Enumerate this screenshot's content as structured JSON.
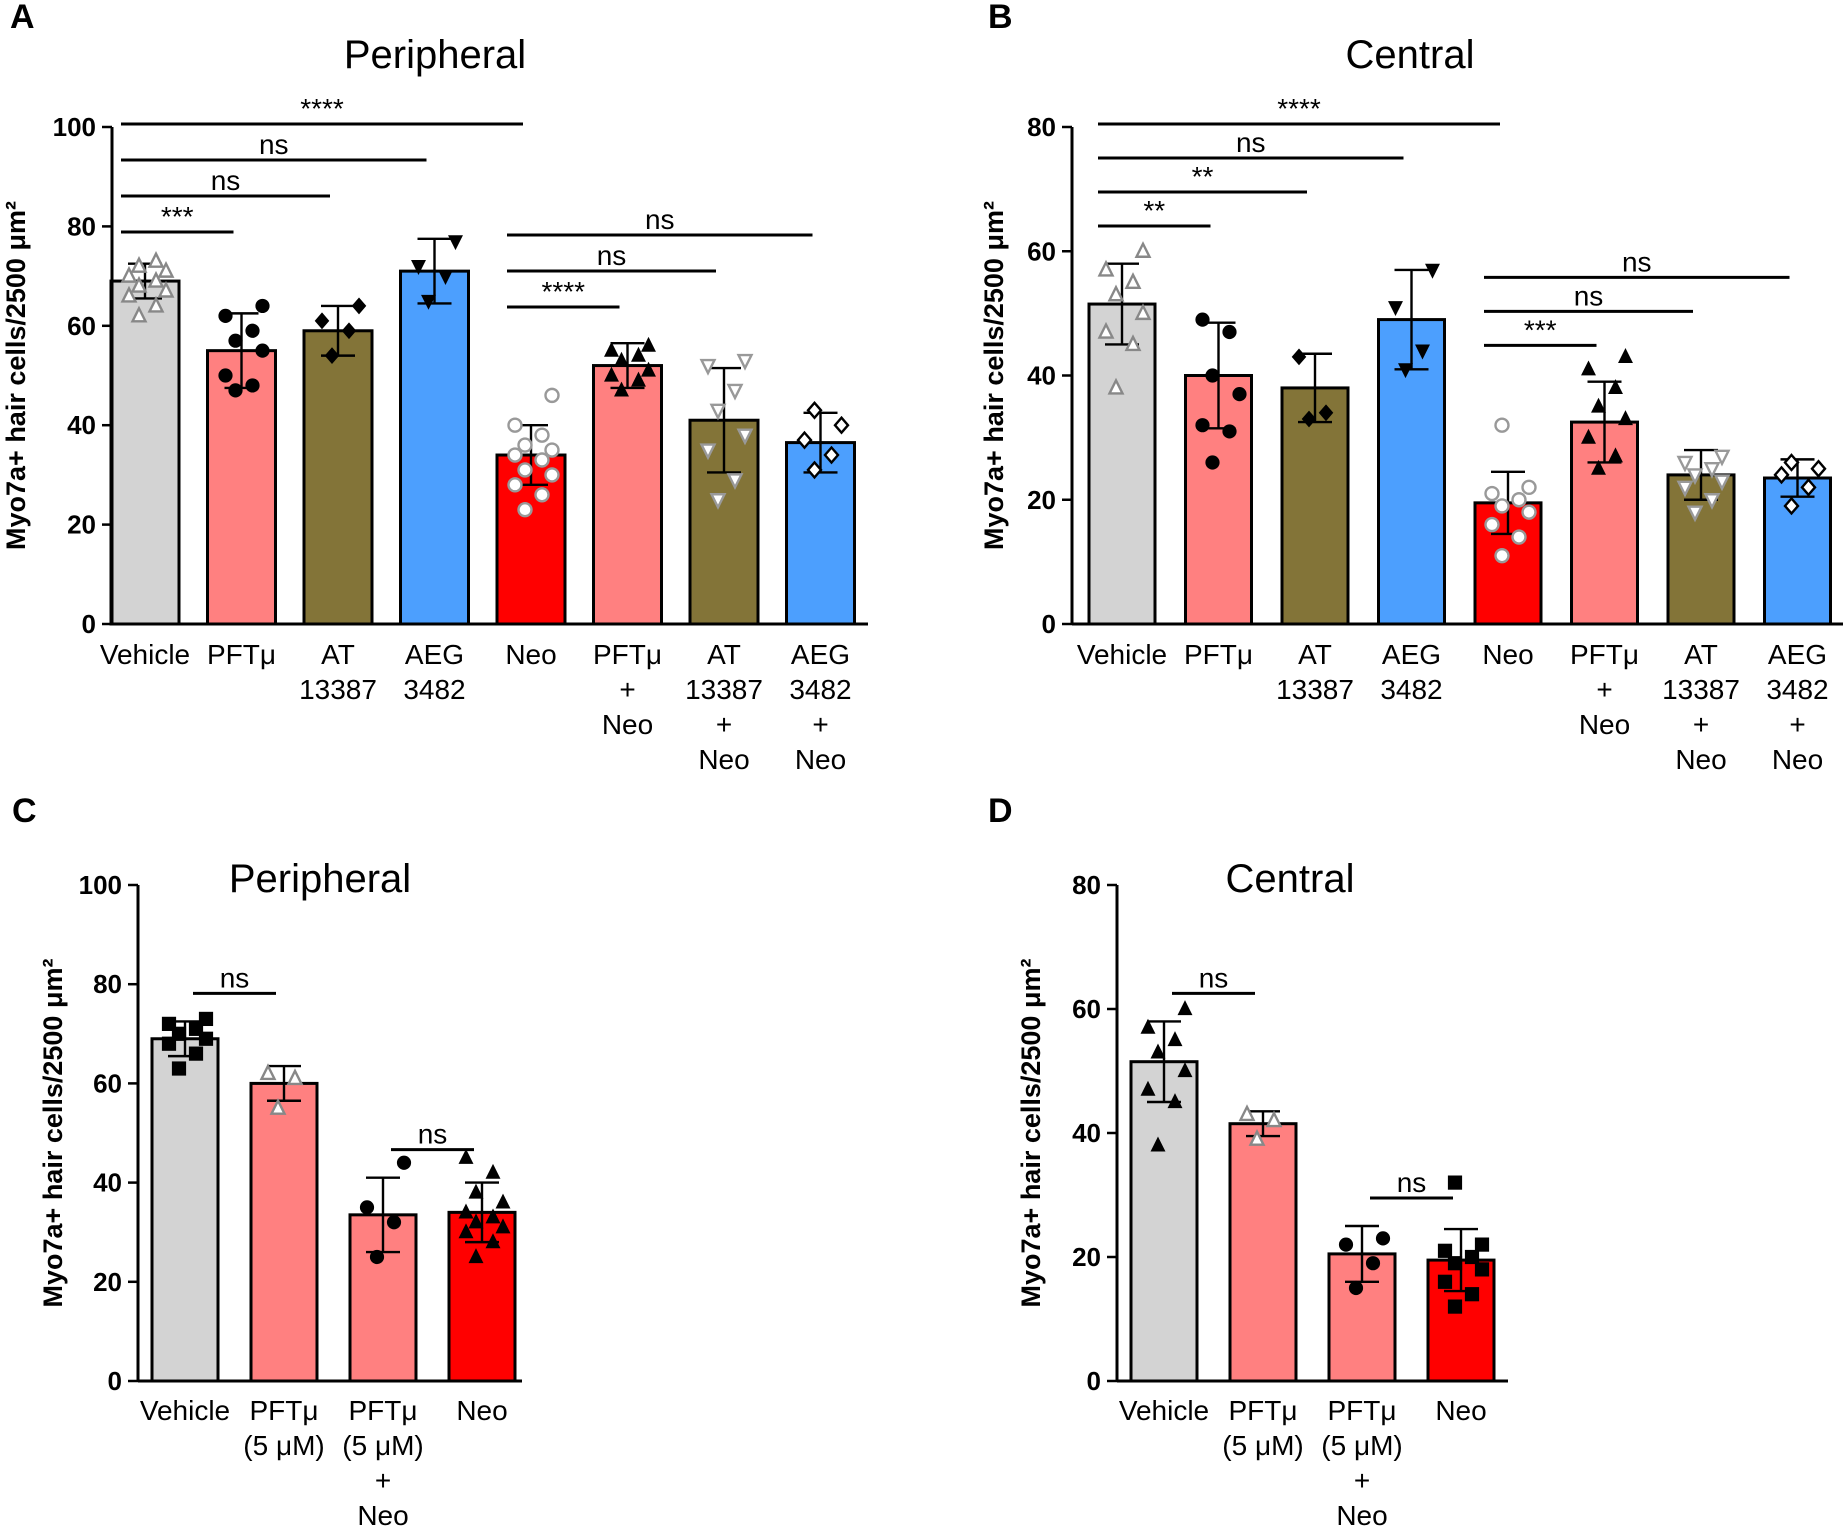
{
  "figure": {
    "panels": [
      {
        "label": "A",
        "title": "Peripheral"
      },
      {
        "label": "B",
        "title": "Central"
      },
      {
        "label": "C",
        "title": "Peripheral"
      },
      {
        "label": "D",
        "title": "Central"
      }
    ]
  },
  "chart_data": [
    {
      "type": "bar",
      "panel": "A",
      "title": "Peripheral",
      "ylabel": "Myo7a+ hair cells/2500 μm²",
      "ylim": [
        0,
        100
      ],
      "yticks": [
        0,
        20,
        40,
        60,
        80,
        100
      ],
      "categories": [
        [
          "Vehicle"
        ],
        [
          "PFTμ"
        ],
        [
          "AT",
          "13387"
        ],
        [
          "AEG",
          "3482"
        ],
        [
          "Neo"
        ],
        [
          "PFTμ",
          "+",
          "Neo"
        ],
        [
          "AT",
          "13387",
          "+",
          "Neo"
        ],
        [
          "AEG",
          "3482",
          "+",
          "Neo"
        ]
      ],
      "values": [
        69,
        55,
        59,
        71,
        34,
        52,
        41,
        36.5
      ],
      "errors": [
        3.5,
        7.5,
        5,
        6.5,
        6,
        4.5,
        10.5,
        6
      ],
      "colors": [
        "#d3d3d3",
        "#ff8080",
        "#837438",
        "#4c9ffe",
        "#ff0000",
        "#ff8080",
        "#837438",
        "#4c9ffe"
      ],
      "points": [
        [
          62,
          64,
          66,
          67,
          68,
          69,
          70,
          71,
          72,
          73
        ],
        [
          47,
          48,
          50,
          55,
          57,
          59,
          62,
          64
        ],
        [
          54,
          59,
          61,
          64
        ],
        [
          65,
          70,
          72,
          77
        ],
        [
          23,
          26,
          28,
          30,
          31,
          33,
          34,
          35,
          36,
          38,
          40,
          46
        ],
        [
          47,
          49,
          50,
          51,
          53,
          54,
          55,
          56
        ],
        [
          25,
          29,
          35,
          38,
          43,
          47,
          52,
          53
        ],
        [
          31,
          34,
          37,
          40,
          43
        ]
      ],
      "markers": [
        "tri-up-open",
        "circle",
        "diamond",
        "tri-down",
        "circle-open",
        "tri-up",
        "tri-down-open",
        "diamond-open"
      ],
      "marker_colors": [
        "#888888",
        "#000000",
        "#000000",
        "#000000",
        "#999999",
        "#000000",
        "#999999",
        "#000000"
      ],
      "comparisons": [
        {
          "from": 0,
          "to": 1,
          "label": "***"
        },
        {
          "from": 0,
          "to": 2,
          "label": "ns"
        },
        {
          "from": 0,
          "to": 3,
          "label": "ns"
        },
        {
          "from": 0,
          "to": 4,
          "label": "****"
        },
        {
          "from": 4,
          "to": 5,
          "label": "****"
        },
        {
          "from": 4,
          "to": 6,
          "label": "ns"
        },
        {
          "from": 4,
          "to": 7,
          "label": "ns"
        }
      ]
    },
    {
      "type": "bar",
      "panel": "B",
      "title": "Central",
      "ylabel": "Myo7a+ hair cells/2500 μm²",
      "ylim": [
        0,
        80
      ],
      "yticks": [
        0,
        20,
        40,
        60,
        80
      ],
      "categories": [
        [
          "Vehicle"
        ],
        [
          "PFTμ"
        ],
        [
          "AT",
          "13387"
        ],
        [
          "AEG",
          "3482"
        ],
        [
          "Neo"
        ],
        [
          "PFTμ",
          "+",
          "Neo"
        ],
        [
          "AT",
          "13387",
          "+",
          "Neo"
        ],
        [
          "AEG",
          "3482",
          "+",
          "Neo"
        ]
      ],
      "values": [
        51.5,
        40,
        38,
        49,
        19.5,
        32.5,
        24,
        23.5
      ],
      "errors": [
        6.5,
        8.5,
        5.5,
        8,
        5,
        6.5,
        4,
        3
      ],
      "colors": [
        "#d3d3d3",
        "#ff8080",
        "#837438",
        "#4c9ffe",
        "#ff0000",
        "#ff8080",
        "#837438",
        "#4c9ffe"
      ],
      "points": [
        [
          38,
          45,
          47,
          50,
          53,
          55,
          57,
          60
        ],
        [
          26,
          31,
          32,
          37,
          40,
          47,
          49
        ],
        [
          33,
          34,
          43
        ],
        [
          41,
          44,
          51,
          57
        ],
        [
          11,
          14,
          16,
          18,
          19,
          20,
          21,
          22,
          32
        ],
        [
          25,
          27,
          30,
          33,
          35,
          38,
          41,
          43
        ],
        [
          18,
          20,
          22,
          23,
          24,
          25,
          26,
          27
        ],
        [
          19,
          22,
          24,
          25,
          26
        ]
      ],
      "markers": [
        "tri-up-open",
        "circle",
        "diamond",
        "tri-down",
        "circle-open",
        "tri-up",
        "tri-down-open",
        "diamond-open"
      ],
      "marker_colors": [
        "#888888",
        "#000000",
        "#000000",
        "#000000",
        "#999999",
        "#000000",
        "#999999",
        "#000000"
      ],
      "comparisons": [
        {
          "from": 0,
          "to": 1,
          "label": "**"
        },
        {
          "from": 0,
          "to": 2,
          "label": "**"
        },
        {
          "from": 0,
          "to": 3,
          "label": "ns"
        },
        {
          "from": 0,
          "to": 4,
          "label": "****"
        },
        {
          "from": 4,
          "to": 5,
          "label": "***"
        },
        {
          "from": 4,
          "to": 6,
          "label": "ns"
        },
        {
          "from": 4,
          "to": 7,
          "label": "ns"
        }
      ]
    },
    {
      "type": "bar",
      "panel": "C",
      "title": "Peripheral",
      "ylabel": "Myo7a+ hair cells/2500 μm²",
      "ylim": [
        0,
        100
      ],
      "yticks": [
        0,
        20,
        40,
        60,
        80,
        100
      ],
      "categories": [
        [
          "Vehicle"
        ],
        [
          "PFTμ",
          "(5 μM)"
        ],
        [
          "PFTμ",
          "(5 μM)",
          "+",
          "Neo"
        ],
        [
          "Neo"
        ]
      ],
      "values": [
        69,
        60,
        33.5,
        34
      ],
      "errors": [
        3.5,
        3.5,
        7.5,
        6
      ],
      "colors": [
        "#d3d3d3",
        "#ff8080",
        "#ff8080",
        "#ff0000"
      ],
      "points": [
        [
          63,
          66,
          68,
          69,
          70,
          71,
          72,
          73
        ],
        [
          55,
          61,
          62
        ],
        [
          25,
          32,
          35,
          44
        ],
        [
          25,
          28,
          30,
          31,
          32,
          33,
          34,
          36,
          38,
          42,
          45
        ]
      ],
      "markers": [
        "square",
        "tri-up-open",
        "circle",
        "tri-up"
      ],
      "marker_colors": [
        "#000000",
        "#888888",
        "#000000",
        "#000000"
      ],
      "comparisons": [
        {
          "from": 0,
          "to": 1,
          "label": "ns"
        },
        {
          "from": 2,
          "to": 3,
          "label": "ns"
        }
      ]
    },
    {
      "type": "bar",
      "panel": "D",
      "title": "Central",
      "ylabel": "Myo7a+ hair cells/2500 μm²",
      "ylim": [
        0,
        80
      ],
      "yticks": [
        0,
        20,
        40,
        60,
        80
      ],
      "categories": [
        [
          "Vehicle"
        ],
        [
          "PFTμ",
          "(5 μM)"
        ],
        [
          "PFTμ",
          "(5 μM)",
          "+",
          "Neo"
        ],
        [
          "Neo"
        ]
      ],
      "values": [
        51.5,
        41.5,
        20.5,
        19.5
      ],
      "errors": [
        6.5,
        2,
        4.5,
        5
      ],
      "colors": [
        "#d3d3d3",
        "#ff8080",
        "#ff8080",
        "#ff0000"
      ],
      "points": [
        [
          38,
          45,
          47,
          50,
          53,
          55,
          57,
          60
        ],
        [
          39,
          42,
          43
        ],
        [
          15,
          19,
          22,
          23
        ],
        [
          12,
          14,
          16,
          18,
          19,
          20,
          21,
          22,
          32
        ]
      ],
      "markers": [
        "tri-up",
        "tri-up-open",
        "circle",
        "square"
      ],
      "marker_colors": [
        "#000000",
        "#888888",
        "#000000",
        "#000000"
      ],
      "comparisons": [
        {
          "from": 0,
          "to": 1,
          "label": "ns"
        },
        {
          "from": 2,
          "to": 3,
          "label": "ns"
        }
      ]
    }
  ]
}
